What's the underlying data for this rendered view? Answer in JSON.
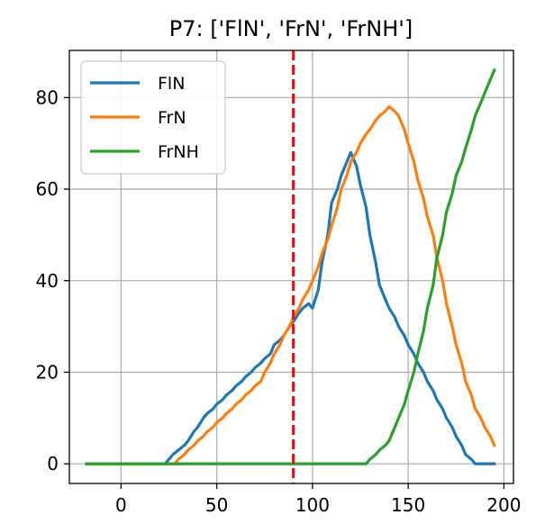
{
  "chart_data": {
    "type": "line",
    "title": "P7: ['FlN', 'FrN', 'FrNH']",
    "xlabel": "",
    "ylabel": "",
    "xlim": [
      -27,
      205
    ],
    "ylim": [
      -4.3,
      90.3
    ],
    "xticks": [
      0,
      50,
      100,
      150,
      200
    ],
    "yticks": [
      0,
      20,
      40,
      60,
      80
    ],
    "grid": true,
    "legend_position": "upper-left",
    "vline": {
      "x": 90,
      "color": "#ff0000",
      "style": "dashed"
    },
    "series": [
      {
        "name": "FlN",
        "color": "#1f77b4",
        "x": [
          -18,
          20,
          23,
          25,
          27,
          30,
          33,
          35,
          38,
          40,
          43,
          45,
          48,
          50,
          53,
          55,
          58,
          60,
          63,
          65,
          68,
          70,
          73,
          75,
          78,
          80,
          83,
          85,
          88,
          90,
          93,
          95,
          98,
          100,
          103,
          105,
          108,
          110,
          113,
          115,
          118,
          120,
          123,
          125,
          128,
          130,
          133,
          135,
          138,
          140,
          143,
          145,
          148,
          150,
          153,
          155,
          158,
          160,
          163,
          165,
          168,
          170,
          173,
          175,
          178,
          180,
          183,
          185,
          188,
          190,
          193,
          195
        ],
        "y": [
          0,
          0,
          0,
          1,
          2,
          3,
          4,
          5,
          7,
          8,
          10,
          11,
          12,
          13,
          14,
          15,
          16,
          17,
          18,
          19,
          20,
          21,
          22,
          23,
          24,
          26,
          27,
          28,
          30,
          31,
          33,
          34,
          35,
          34,
          38,
          44,
          50,
          57,
          60,
          63,
          66,
          68,
          65,
          61,
          56,
          50,
          44,
          39,
          36,
          34,
          32,
          30,
          28,
          26,
          24,
          22,
          20,
          18,
          16,
          14,
          12,
          10,
          8,
          6,
          4,
          2,
          1,
          0,
          0,
          0,
          0,
          0
        ]
      },
      {
        "name": "FrN",
        "color": "#ff7f0e",
        "x": [
          -18,
          25,
          28,
          30,
          33,
          35,
          38,
          40,
          43,
          45,
          48,
          50,
          53,
          55,
          58,
          60,
          63,
          65,
          68,
          70,
          73,
          75,
          78,
          80,
          83,
          85,
          88,
          90,
          93,
          95,
          98,
          100,
          103,
          105,
          108,
          110,
          113,
          115,
          118,
          120,
          123,
          125,
          128,
          130,
          133,
          135,
          138,
          140,
          143,
          145,
          148,
          150,
          153,
          155,
          158,
          160,
          163,
          165,
          168,
          170,
          173,
          175,
          178,
          180,
          183,
          185,
          188,
          190,
          193,
          195
        ],
        "y": [
          0,
          0,
          0,
          1,
          2,
          3,
          4,
          5,
          6,
          7,
          8,
          9,
          10,
          11,
          12,
          13,
          14,
          15,
          16,
          17,
          18,
          20,
          22,
          24,
          26,
          28,
          30,
          32,
          34,
          36,
          38,
          40,
          43,
          46,
          49,
          52,
          56,
          60,
          63,
          66,
          68,
          70,
          72,
          73,
          75,
          76,
          77,
          78,
          77,
          76,
          73,
          70,
          66,
          62,
          58,
          54,
          50,
          45,
          40,
          35,
          30,
          26,
          22,
          18,
          15,
          12,
          10,
          8,
          6,
          4
        ]
      },
      {
        "name": "FrNH",
        "color": "#2ca02c",
        "x": [
          -18,
          128,
          130,
          133,
          135,
          138,
          140,
          143,
          145,
          148,
          150,
          153,
          155,
          158,
          160,
          163,
          165,
          168,
          170,
          173,
          175,
          178,
          180,
          183,
          185,
          188,
          190,
          193,
          195
        ],
        "y": [
          0,
          0,
          1,
          2,
          3,
          4,
          5,
          8,
          10,
          13,
          16,
          20,
          24,
          29,
          34,
          39,
          45,
          50,
          55,
          59,
          63,
          66,
          69,
          73,
          76,
          79,
          81,
          84,
          86
        ]
      }
    ]
  }
}
